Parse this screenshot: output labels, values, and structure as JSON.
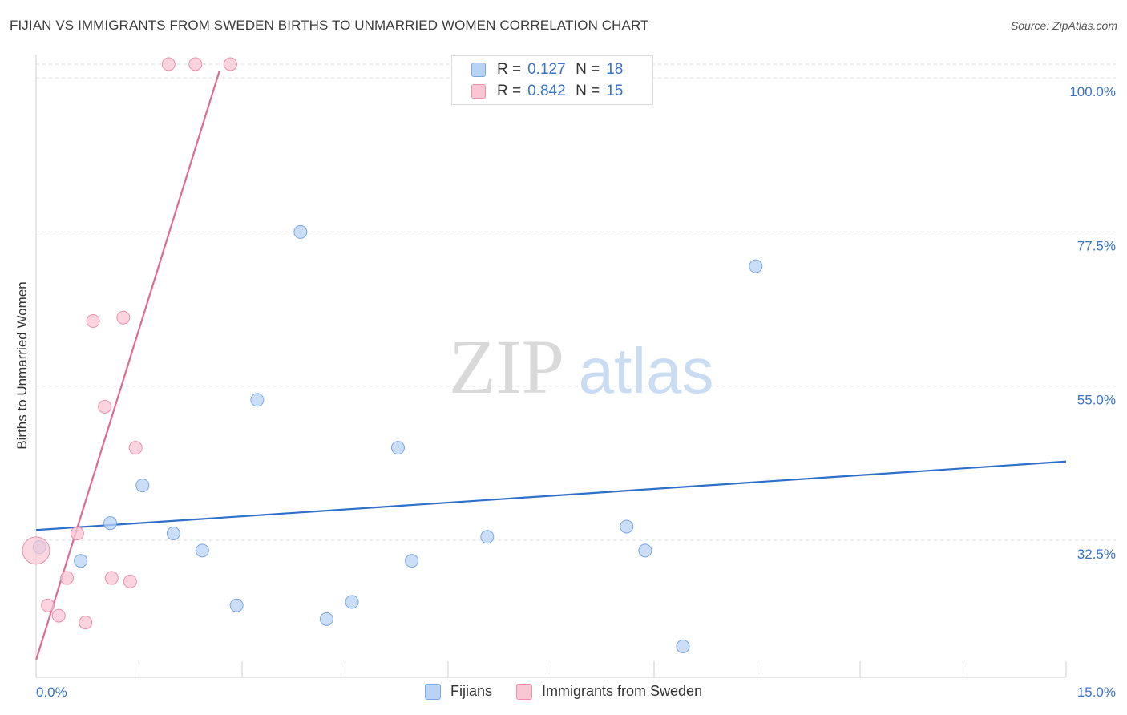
{
  "title": "FIJIAN VS IMMIGRANTS FROM SWEDEN BIRTHS TO UNMARRIED WOMEN CORRELATION CHART",
  "source": "Source: ZipAtlas.com",
  "watermark": {
    "zip": "ZIP",
    "atlas": "atlas"
  },
  "legend_top": [
    {
      "r_label": "R =",
      "r_value": "0.127",
      "n_label": "N =",
      "n_value": "18"
    },
    {
      "r_label": "R =",
      "r_value": "0.842",
      "n_label": "N =",
      "n_value": "15"
    }
  ],
  "colors": {
    "fijians_fill": "#b9d3f5",
    "fijians_stroke": "#7aa6e3",
    "fijians_line": "#2e70c9",
    "sweden_fill": "#f9c6d4",
    "sweden_stroke": "#ec8fab",
    "sweden_line": "#e06a93",
    "axis_text": "#3a73c8",
    "grid": "#dcdcdc"
  },
  "chart_data": {
    "type": "scatter",
    "title": "FIJIAN VS IMMIGRANTS FROM SWEDEN BIRTHS TO UNMARRIED WOMEN CORRELATION CHART",
    "xlabel": "",
    "ylabel": "Births to Unmarried Women",
    "xlim": [
      0,
      15
    ],
    "ylim": [
      12.5,
      102
    ],
    "x_tick_labels": [
      "0.0%",
      "15.0%"
    ],
    "y_ticks": [
      {
        "value": 100.0,
        "label": "100.0%"
      },
      {
        "value": 77.5,
        "label": "77.5%"
      },
      {
        "value": 55.0,
        "label": "55.0%"
      },
      {
        "value": 32.5,
        "label": "32.5%"
      }
    ],
    "series": [
      {
        "name": "Fijians",
        "points": [
          {
            "x": 0.05,
            "y": 31.5
          },
          {
            "x": 0.65,
            "y": 29.5
          },
          {
            "x": 1.08,
            "y": 35.0
          },
          {
            "x": 1.55,
            "y": 40.5
          },
          {
            "x": 2.0,
            "y": 33.5
          },
          {
            "x": 2.42,
            "y": 31.0
          },
          {
            "x": 2.92,
            "y": 23.0
          },
          {
            "x": 3.22,
            "y": 53.0
          },
          {
            "x": 3.85,
            "y": 77.5
          },
          {
            "x": 4.23,
            "y": 21.0
          },
          {
            "x": 4.6,
            "y": 23.5
          },
          {
            "x": 5.27,
            "y": 46.0
          },
          {
            "x": 5.47,
            "y": 29.5
          },
          {
            "x": 6.57,
            "y": 33.0
          },
          {
            "x": 8.6,
            "y": 34.5
          },
          {
            "x": 8.87,
            "y": 31.0
          },
          {
            "x": 9.42,
            "y": 17.0
          },
          {
            "x": 10.48,
            "y": 72.5
          }
        ],
        "trend": {
          "x": [
            0.0,
            15.0
          ],
          "y": [
            34.0,
            44.0
          ]
        }
      },
      {
        "name": "Immigrants from Sweden",
        "points": [
          {
            "x": 0.0,
            "y": 31.0
          },
          {
            "x": 0.17,
            "y": 23.0
          },
          {
            "x": 0.33,
            "y": 21.5
          },
          {
            "x": 0.45,
            "y": 27.0
          },
          {
            "x": 0.6,
            "y": 33.5
          },
          {
            "x": 0.72,
            "y": 20.5
          },
          {
            "x": 0.83,
            "y": 64.5
          },
          {
            "x": 1.0,
            "y": 52.0
          },
          {
            "x": 1.1,
            "y": 27.0
          },
          {
            "x": 1.27,
            "y": 65.0
          },
          {
            "x": 1.37,
            "y": 26.5
          },
          {
            "x": 1.45,
            "y": 46.0
          },
          {
            "x": 1.93,
            "y": 102.0
          },
          {
            "x": 2.32,
            "y": 102.0
          },
          {
            "x": 2.83,
            "y": 102.0
          }
        ],
        "trend": {
          "x": [
            0.0,
            2.67
          ],
          "y": [
            15.0,
            101.0
          ]
        }
      }
    ],
    "legend_position": "bottom"
  }
}
